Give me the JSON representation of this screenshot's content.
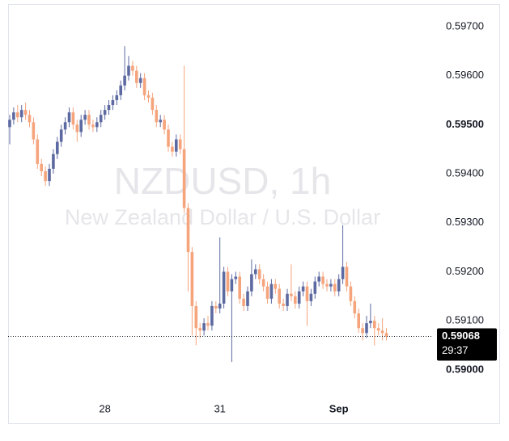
{
  "chart_data": {
    "type": "candlestick",
    "title": "NZDUSD, 1h",
    "subtitle": "New Zealand Dollar / U.S. Dollar",
    "categories": [
      null,
      null,
      null,
      null,
      null,
      null,
      null,
      null,
      null,
      null,
      null,
      null,
      null,
      null,
      null,
      null,
      null,
      null,
      null,
      null,
      null,
      null,
      null,
      null,
      "28",
      null,
      null,
      null,
      null,
      null,
      null,
      null,
      null,
      null,
      null,
      null,
      null,
      null,
      null,
      null,
      null,
      null,
      null,
      null,
      null,
      null,
      null,
      null,
      null,
      null,
      null,
      null,
      null,
      "31",
      null,
      null,
      null,
      null,
      null,
      null,
      null,
      null,
      null,
      null,
      null,
      null,
      null,
      null,
      null,
      null,
      null,
      null,
      null,
      null,
      null,
      null,
      null,
      null,
      null,
      null,
      null,
      null,
      null,
      "Sep",
      null,
      null,
      null,
      null,
      null,
      null,
      null,
      null,
      null,
      null,
      null,
      null
    ],
    "open": [
      0.59495,
      0.5951,
      0.59525,
      0.59515,
      0.5953,
      0.5952,
      0.59505,
      0.5947,
      0.5942,
      0.59405,
      0.59385,
      0.5941,
      0.5944,
      0.59465,
      0.5949,
      0.59505,
      0.59525,
      0.595,
      0.59485,
      0.5951,
      0.5952,
      0.595,
      0.59495,
      0.59505,
      0.5952,
      0.5953,
      0.5954,
      0.5955,
      0.5956,
      0.5958,
      0.596,
      0.5962,
      0.5961,
      0.59585,
      0.59595,
      0.5956,
      0.59555,
      0.5953,
      0.59505,
      0.5951,
      0.5949,
      0.59455,
      0.59445,
      0.5947,
      0.5945,
      0.5933,
      0.5924,
      0.5913,
      0.59085,
      0.5908,
      0.59095,
      0.5909,
      0.5913,
      0.59125,
      0.59135,
      0.592,
      0.5916,
      0.59185,
      0.5919,
      0.59145,
      0.5913,
      0.5916,
      0.59195,
      0.59205,
      0.59185,
      0.5917,
      0.59145,
      0.59175,
      0.59165,
      0.59135,
      0.5913,
      0.59155,
      0.5915,
      0.59135,
      0.5916,
      0.5917,
      0.5914,
      0.59155,
      0.5918,
      0.5919,
      0.59175,
      0.5917,
      0.59175,
      0.5916,
      0.59185,
      0.5921,
      0.5917,
      0.5914,
      0.59115,
      0.59085,
      0.59075,
      0.59095,
      0.591,
      0.59085,
      0.5908,
      0.59075
    ],
    "high": [
      0.5952,
      0.59535,
      0.5954,
      0.5954,
      0.59545,
      0.5953,
      0.59515,
      0.5948,
      0.5943,
      0.59415,
      0.5942,
      0.5945,
      0.59475,
      0.595,
      0.59515,
      0.59535,
      0.59535,
      0.5951,
      0.5952,
      0.5953,
      0.5953,
      0.5951,
      0.59515,
      0.5953,
      0.5954,
      0.5955,
      0.5956,
      0.5957,
      0.5959,
      0.5966,
      0.5964,
      0.5963,
      0.5962,
      0.59605,
      0.59605,
      0.5957,
      0.59565,
      0.5954,
      0.5952,
      0.5952,
      0.595,
      0.59465,
      0.5948,
      0.5948,
      0.5962,
      0.5934,
      0.5925,
      0.5914,
      0.59095,
      0.59105,
      0.5911,
      0.5914,
      0.5914,
      0.5927,
      0.5921,
      0.5921,
      0.59195,
      0.592,
      0.592,
      0.59155,
      0.5917,
      0.59225,
      0.59215,
      0.59215,
      0.59195,
      0.5918,
      0.59185,
      0.59185,
      0.59175,
      0.59145,
      0.59165,
      0.59215,
      0.5916,
      0.5917,
      0.5918,
      0.5918,
      0.59165,
      0.5919,
      0.592,
      0.592,
      0.59185,
      0.59185,
      0.59185,
      0.59195,
      0.59295,
      0.5922,
      0.5918,
      0.5915,
      0.59125,
      0.59095,
      0.5911,
      0.59135,
      0.5911,
      0.59095,
      0.59105,
      0.59085
    ],
    "low": [
      0.5946,
      0.595,
      0.59505,
      0.59505,
      0.5951,
      0.59495,
      0.5946,
      0.5941,
      0.59395,
      0.59375,
      0.59375,
      0.594,
      0.5943,
      0.59455,
      0.5948,
      0.59495,
      0.5949,
      0.59465,
      0.59475,
      0.595,
      0.5949,
      0.59485,
      0.59485,
      0.59495,
      0.5951,
      0.5952,
      0.5953,
      0.5954,
      0.5955,
      0.5957,
      0.5959,
      0.596,
      0.59575,
      0.59575,
      0.5955,
      0.59545,
      0.5952,
      0.59495,
      0.59495,
      0.5948,
      0.59445,
      0.59435,
      0.59435,
      0.5944,
      0.5932,
      0.5916,
      0.5907,
      0.5905,
      0.59065,
      0.5907,
      0.5908,
      0.5908,
      0.59115,
      0.59115,
      0.59125,
      0.5915,
      0.59016,
      0.59175,
      0.59135,
      0.5912,
      0.5912,
      0.5915,
      0.59185,
      0.59175,
      0.5916,
      0.59135,
      0.59135,
      0.59155,
      0.59125,
      0.5912,
      0.5912,
      0.5914,
      0.59125,
      0.59125,
      0.5915,
      0.5909,
      0.5913,
      0.59145,
      0.5917,
      0.59165,
      0.5916,
      0.5916,
      0.5915,
      0.5915,
      0.59175,
      0.5916,
      0.5913,
      0.59105,
      0.59075,
      0.5906,
      0.59065,
      0.59085,
      0.5905,
      0.5907,
      0.5906,
      0.5906
    ],
    "close": [
      0.5951,
      0.59525,
      0.59515,
      0.5953,
      0.5952,
      0.59505,
      0.5947,
      0.5942,
      0.59405,
      0.59385,
      0.5941,
      0.5944,
      0.59465,
      0.5949,
      0.59505,
      0.59525,
      0.595,
      0.59485,
      0.5951,
      0.5952,
      0.595,
      0.59495,
      0.59505,
      0.5952,
      0.5953,
      0.5954,
      0.5955,
      0.5956,
      0.5958,
      0.596,
      0.5962,
      0.5961,
      0.59585,
      0.59595,
      0.5956,
      0.59555,
      0.5953,
      0.59505,
      0.5951,
      0.5949,
      0.59455,
      0.59445,
      0.5947,
      0.5945,
      0.5933,
      0.5924,
      0.5913,
      0.59085,
      0.5908,
      0.59095,
      0.5909,
      0.5913,
      0.59125,
      0.59135,
      0.592,
      0.5916,
      0.59185,
      0.5919,
      0.59145,
      0.5913,
      0.5916,
      0.59195,
      0.59205,
      0.59185,
      0.5917,
      0.59145,
      0.59175,
      0.59165,
      0.59135,
      0.5913,
      0.59155,
      0.5915,
      0.59135,
      0.5916,
      0.5917,
      0.5914,
      0.59155,
      0.5918,
      0.5919,
      0.59175,
      0.5917,
      0.59175,
      0.5916,
      0.59185,
      0.5921,
      0.5917,
      0.5914,
      0.59115,
      0.59085,
      0.59075,
      0.59095,
      0.591,
      0.59085,
      0.5908,
      0.59075,
      0.59068
    ],
    "up_color": "#5d6aa1",
    "down_color": "#f5a47c",
    "ylim": [
      0.58947,
      0.59746
    ],
    "yticks": [
      {
        "value": 0.59,
        "label": "0.59000"
      },
      {
        "value": 0.591,
        "label": "0.59100"
      },
      {
        "value": 0.592,
        "label": "0.59200"
      },
      {
        "value": 0.593,
        "label": "0.59300"
      },
      {
        "value": 0.594,
        "label": "0.59400"
      },
      {
        "value": 0.595,
        "label": "0.59500"
      },
      {
        "value": 0.596,
        "label": "0.59600"
      },
      {
        "value": 0.597,
        "label": "0.59700"
      }
    ],
    "last_price": 0.59068,
    "countdown": "29:37"
  }
}
